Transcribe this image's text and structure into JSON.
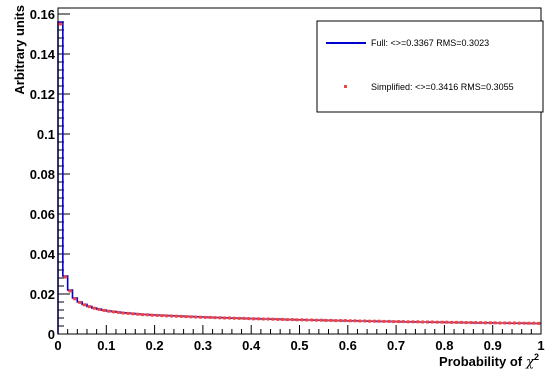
{
  "chart_data": {
    "type": "line",
    "title": "",
    "xlabel": "Probability of",
    "xlabel_symbol": "χ",
    "xlabel_superscript": "2",
    "ylabel": "Arbitrary units",
    "xlim": [
      0,
      1
    ],
    "ylim": [
      0,
      0.163
    ],
    "grid": false,
    "legend_position": "top-right",
    "x_ticks": [
      {
        "value": 0,
        "label": "0"
      },
      {
        "value": 0.1,
        "label": "0.1"
      },
      {
        "value": 0.2,
        "label": "0.2"
      },
      {
        "value": 0.3,
        "label": "0.3"
      },
      {
        "value": 0.4,
        "label": "0.4"
      },
      {
        "value": 0.5,
        "label": "0.5"
      },
      {
        "value": 0.6,
        "label": "0.6"
      },
      {
        "value": 0.7,
        "label": "0.7"
      },
      {
        "value": 0.8,
        "label": "0.8"
      },
      {
        "value": 0.9,
        "label": "0.9"
      },
      {
        "value": 1,
        "label": "1"
      }
    ],
    "y_ticks": [
      {
        "value": 0,
        "label": "0"
      },
      {
        "value": 0.02,
        "label": "0.02"
      },
      {
        "value": 0.04,
        "label": "0.04"
      },
      {
        "value": 0.06,
        "label": "0.06"
      },
      {
        "value": 0.08,
        "label": "0.08"
      },
      {
        "value": 0.1,
        "label": "0.1"
      },
      {
        "value": 0.12,
        "label": "0.12"
      },
      {
        "value": 0.14,
        "label": "0.14"
      },
      {
        "value": 0.16,
        "label": "0.16"
      }
    ],
    "bin_width": 0.01,
    "series": [
      {
        "name": "Full: <>=0.3367 RMS=0.3023",
        "style": "histogram-line",
        "color": "#0000cc",
        "values": [
          0.156,
          0.029,
          0.022,
          0.018,
          0.016,
          0.0148,
          0.0138,
          0.013,
          0.0124,
          0.0119,
          0.0115,
          0.0112,
          0.0109,
          0.0106,
          0.0104,
          0.0102,
          0.01,
          0.0098,
          0.0097,
          0.0095,
          0.0094,
          0.0093,
          0.0092,
          0.0091,
          0.009,
          0.0089,
          0.0088,
          0.0087,
          0.0086,
          0.0085,
          0.0084,
          0.0083,
          0.0082,
          0.0082,
          0.0081,
          0.008,
          0.0079,
          0.0079,
          0.0078,
          0.0077,
          0.0077,
          0.0076,
          0.0075,
          0.0075,
          0.0074,
          0.0074,
          0.0073,
          0.0072,
          0.0072,
          0.0071,
          0.0071,
          0.007,
          0.007,
          0.0069,
          0.0069,
          0.0068,
          0.0068,
          0.0067,
          0.0067,
          0.0066,
          0.0066,
          0.0066,
          0.0065,
          0.0065,
          0.0064,
          0.0064,
          0.0063,
          0.0063,
          0.0063,
          0.0062,
          0.0062,
          0.0061,
          0.0061,
          0.0061,
          0.006,
          0.006,
          0.006,
          0.0059,
          0.0059,
          0.0059,
          0.0058,
          0.0058,
          0.0058,
          0.0057,
          0.0057,
          0.0057,
          0.0056,
          0.0056,
          0.0056,
          0.0056,
          0.0055,
          0.0055,
          0.0055,
          0.0054,
          0.0054,
          0.0054,
          0.0054,
          0.0053,
          0.0053,
          0.0053
        ]
      },
      {
        "name": "Simplified: <>=0.3416 RMS=0.3055",
        "style": "points",
        "color": "#ee4444",
        "values": [
          0.155,
          0.0285,
          0.0215,
          0.0176,
          0.0158,
          0.0146,
          0.0137,
          0.0129,
          0.0123,
          0.0118,
          0.0114,
          0.0111,
          0.0108,
          0.0105,
          0.0103,
          0.0101,
          0.0099,
          0.0097,
          0.0096,
          0.0094,
          0.0093,
          0.0092,
          0.0091,
          0.009,
          0.0089,
          0.0088,
          0.0087,
          0.0086,
          0.0085,
          0.0084,
          0.0083,
          0.0083,
          0.0082,
          0.0081,
          0.008,
          0.008,
          0.0079,
          0.0078,
          0.0078,
          0.0077,
          0.0076,
          0.0076,
          0.0075,
          0.0075,
          0.0074,
          0.0073,
          0.0073,
          0.0072,
          0.0072,
          0.0071,
          0.0071,
          0.007,
          0.007,
          0.0069,
          0.0069,
          0.0068,
          0.0068,
          0.0067,
          0.0067,
          0.0067,
          0.0066,
          0.0066,
          0.0065,
          0.0065,
          0.0064,
          0.0064,
          0.0064,
          0.0063,
          0.0063,
          0.0062,
          0.0062,
          0.0062,
          0.0061,
          0.0061,
          0.0061,
          0.006,
          0.006,
          0.006,
          0.0059,
          0.0059,
          0.0059,
          0.0058,
          0.0058,
          0.0058,
          0.0057,
          0.0057,
          0.0057,
          0.0057,
          0.0056,
          0.0056,
          0.0056,
          0.0055,
          0.0055,
          0.0055,
          0.0055,
          0.0054,
          0.0054,
          0.0054,
          0.0054,
          0.0053
        ]
      }
    ]
  }
}
